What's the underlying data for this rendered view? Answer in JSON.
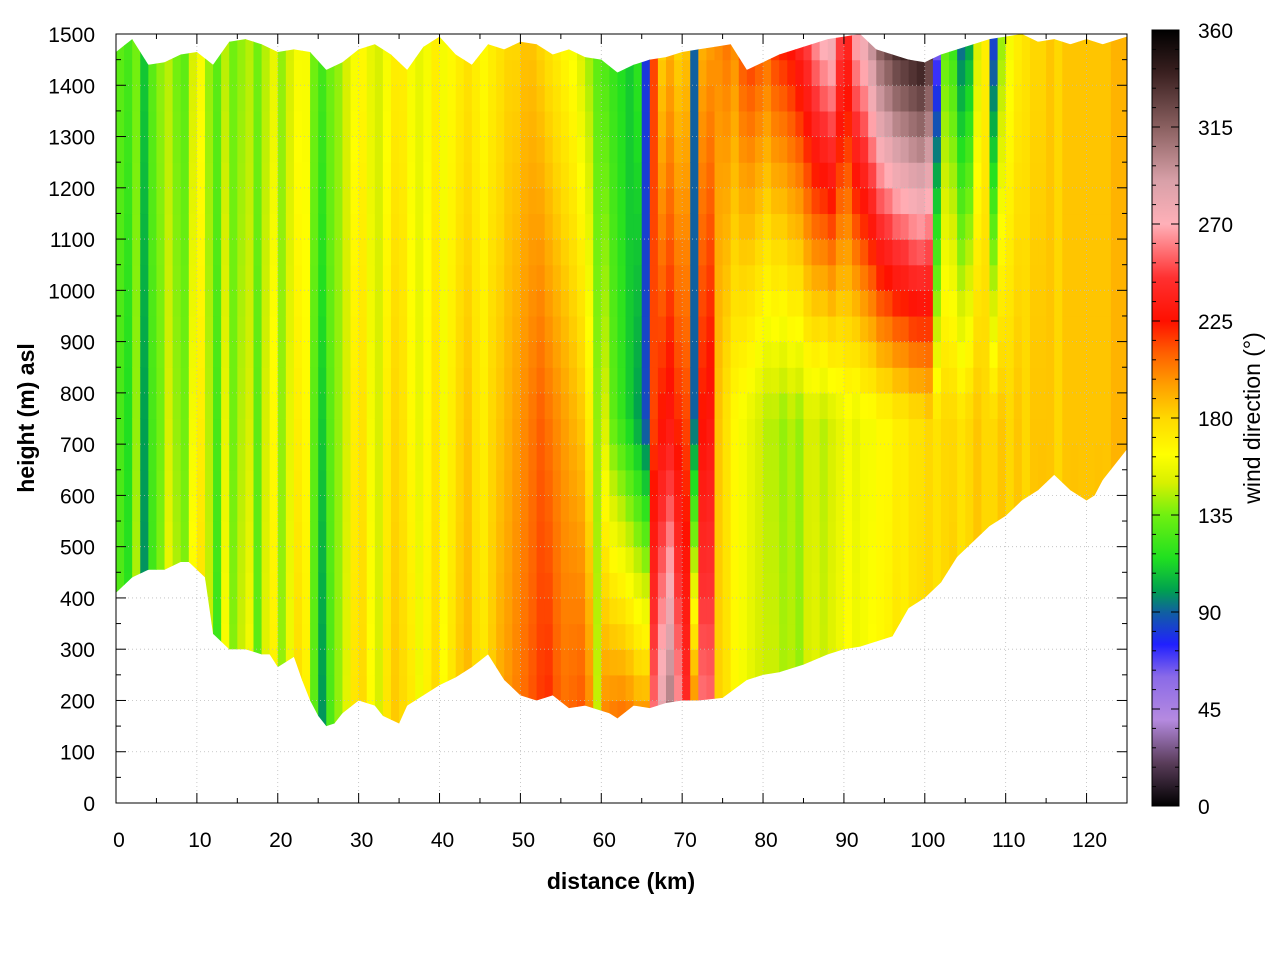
{
  "chart_data": {
    "type": "heatmap",
    "xlabel": "distance (km)",
    "ylabel": "height (m) asl",
    "colorbar_label": "wind direction (°)",
    "xlim": [
      0,
      125
    ],
    "ylim": [
      0,
      1500
    ],
    "clim": [
      0,
      360
    ],
    "x_ticks": [
      "0",
      "10",
      "20",
      "30",
      "40",
      "50",
      "60",
      "70",
      "80",
      "90",
      "100",
      "110",
      "120"
    ],
    "y_ticks": [
      "0",
      "100",
      "200",
      "300",
      "400",
      "500",
      "600",
      "700",
      "800",
      "900",
      "1000",
      "1100",
      "1200",
      "1300",
      "1400",
      "1500"
    ],
    "colorbar_ticks": [
      "0",
      "45",
      "90",
      "135",
      "180",
      "225",
      "270",
      "315",
      "360"
    ],
    "grid": true,
    "colormap": [
      [
        0,
        "#000000"
      ],
      [
        20,
        "#5a3d5a"
      ],
      [
        40,
        "#b58ae0"
      ],
      [
        60,
        "#8a6ae8"
      ],
      [
        75,
        "#2020ff"
      ],
      [
        90,
        "#1060a0"
      ],
      [
        100,
        "#00a050"
      ],
      [
        115,
        "#20e020"
      ],
      [
        135,
        "#70f010"
      ],
      [
        150,
        "#d8f000"
      ],
      [
        163,
        "#ffff00"
      ],
      [
        180,
        "#ffd800"
      ],
      [
        195,
        "#ffa000"
      ],
      [
        210,
        "#ff6000"
      ],
      [
        225,
        "#ff1000"
      ],
      [
        245,
        "#ff3030"
      ],
      [
        270,
        "#ffb0b8"
      ],
      [
        290,
        "#d8a0a8"
      ],
      [
        315,
        "#8a6060"
      ],
      [
        340,
        "#3a2020"
      ],
      [
        360,
        "#000000"
      ]
    ],
    "terrain_bottom": {
      "x": [
        0,
        2,
        4,
        6,
        8,
        9,
        11,
        12,
        14,
        16,
        18,
        19,
        20,
        22,
        23,
        24,
        25,
        26,
        27,
        28,
        30,
        32,
        33,
        35,
        36,
        38,
        40,
        42,
        44,
        46,
        48,
        50,
        52,
        54,
        56,
        58,
        60,
        61,
        62,
        64,
        66,
        68,
        70,
        72,
        75,
        78,
        80,
        82,
        85,
        88,
        90,
        92,
        94,
        96,
        98,
        100,
        102,
        104,
        106,
        108,
        110,
        112,
        114,
        116,
        118,
        120,
        121,
        122,
        124,
        125
      ],
      "y": [
        410,
        440,
        455,
        455,
        470,
        470,
        440,
        330,
        300,
        300,
        290,
        290,
        265,
        285,
        240,
        200,
        170,
        150,
        155,
        175,
        200,
        190,
        170,
        155,
        190,
        210,
        230,
        245,
        265,
        290,
        240,
        210,
        200,
        210,
        185,
        190,
        180,
        175,
        165,
        190,
        185,
        195,
        200,
        200,
        205,
        240,
        250,
        255,
        270,
        290,
        300,
        305,
        315,
        325,
        380,
        400,
        430,
        480,
        510,
        540,
        560,
        590,
        610,
        640,
        610,
        590,
        600,
        630,
        670,
        690
      ]
    },
    "terrain_top": {
      "x": [
        0,
        2,
        4,
        6,
        8,
        10,
        12,
        14,
        16,
        18,
        20,
        22,
        24,
        26,
        28,
        30,
        32,
        34,
        36,
        38,
        40,
        42,
        44,
        46,
        48,
        50,
        52,
        54,
        56,
        58,
        60,
        62,
        64,
        66,
        68,
        70,
        72,
        74,
        76,
        78,
        80,
        82,
        84,
        86,
        88,
        90,
        92,
        94,
        96,
        98,
        100,
        102,
        104,
        106,
        108,
        110,
        112,
        114,
        116,
        118,
        120,
        122,
        124,
        125
      ],
      "y": [
        1465,
        1490,
        1440,
        1445,
        1460,
        1465,
        1440,
        1485,
        1490,
        1480,
        1465,
        1470,
        1465,
        1430,
        1445,
        1470,
        1480,
        1460,
        1430,
        1475,
        1495,
        1460,
        1440,
        1480,
        1470,
        1485,
        1480,
        1460,
        1470,
        1455,
        1450,
        1425,
        1440,
        1450,
        1455,
        1465,
        1470,
        1475,
        1480,
        1430,
        1445,
        1460,
        1470,
        1480,
        1490,
        1495,
        1500,
        1470,
        1460,
        1450,
        1445,
        1460,
        1470,
        1480,
        1490,
        1495,
        1500,
        1485,
        1490,
        1480,
        1490,
        1480,
        1490,
        1495
      ]
    },
    "direction_columns": {
      "x": [
        0,
        1,
        2,
        3,
        4,
        5,
        6,
        7,
        8,
        9,
        10,
        11,
        12,
        13,
        14,
        15,
        16,
        17,
        18,
        19,
        20,
        21,
        22,
        23,
        24,
        25,
        26,
        27,
        28,
        29,
        30,
        31,
        32,
        33,
        34,
        35,
        36,
        37,
        38,
        39,
        40,
        41,
        42,
        43,
        44,
        45,
        46,
        47,
        48,
        49,
        50,
        51,
        52,
        53,
        54,
        55,
        56,
        57,
        58,
        59,
        60,
        61,
        62,
        63,
        64,
        65,
        66,
        67,
        68,
        69,
        70,
        71,
        72,
        73,
        74,
        75,
        76,
        77,
        78,
        79,
        80,
        81,
        82,
        83,
        84,
        85,
        86,
        87,
        88,
        89,
        90,
        91,
        92,
        93,
        94,
        95,
        96,
        97,
        98,
        99,
        100,
        101,
        102,
        103,
        104,
        105,
        106,
        107,
        108,
        109,
        110,
        111,
        112,
        113,
        114,
        115,
        116,
        117,
        118,
        119,
        120,
        121,
        122,
        123,
        124
      ],
      "direction_low": [
        130,
        120,
        150,
        95,
        120,
        140,
        165,
        150,
        140,
        170,
        180,
        150,
        120,
        165,
        140,
        150,
        165,
        130,
        155,
        170,
        140,
        160,
        180,
        170,
        130,
        95,
        125,
        140,
        155,
        175,
        180,
        165,
        150,
        175,
        185,
        180,
        175,
        160,
        170,
        180,
        165,
        175,
        185,
        190,
        180,
        175,
        185,
        195,
        200,
        205,
        210,
        215,
        220,
        225,
        215,
        210,
        215,
        220,
        210,
        150,
        215,
        225,
        230,
        230,
        225,
        230,
        270,
        300,
        330,
        280,
        250,
        240,
        270,
        265,
        180,
        175,
        165,
        160,
        155,
        150,
        150,
        150,
        145,
        145,
        140,
        150,
        155,
        150,
        155,
        160,
        165,
        160,
        160,
        165,
        165,
        170,
        175,
        170,
        175,
        180,
        180,
        175,
        180,
        185,
        175,
        180,
        185,
        180,
        180,
        185,
        180,
        185,
        180,
        185,
        190,
        185,
        180,
        185,
        190,
        185,
        185,
        190,
        185,
        190,
        190
      ],
      "direction_mid": [
        125,
        115,
        140,
        100,
        125,
        135,
        150,
        140,
        135,
        160,
        170,
        145,
        125,
        155,
        135,
        145,
        150,
        130,
        150,
        165,
        140,
        155,
        170,
        165,
        130,
        110,
        130,
        140,
        150,
        170,
        175,
        160,
        150,
        170,
        180,
        175,
        165,
        155,
        165,
        175,
        160,
        170,
        180,
        185,
        175,
        170,
        180,
        185,
        190,
        195,
        200,
        205,
        210,
        205,
        200,
        195,
        190,
        185,
        170,
        140,
        150,
        130,
        120,
        110,
        100,
        85,
        215,
        225,
        230,
        220,
        215,
        90,
        225,
        230,
        185,
        175,
        165,
        160,
        155,
        150,
        145,
        145,
        140,
        145,
        140,
        150,
        150,
        145,
        150,
        155,
        160,
        155,
        160,
        160,
        165,
        165,
        170,
        170,
        175,
        175,
        180,
        175,
        180,
        180,
        175,
        180,
        185,
        180,
        180,
        185,
        180,
        185,
        180,
        185,
        185,
        185,
        180,
        185,
        185,
        185,
        185,
        185,
        185,
        190,
        190
      ],
      "direction_high": [
        130,
        125,
        135,
        110,
        130,
        140,
        145,
        135,
        130,
        150,
        160,
        140,
        130,
        145,
        135,
        140,
        145,
        135,
        145,
        155,
        140,
        150,
        160,
        160,
        135,
        125,
        135,
        140,
        150,
        160,
        165,
        155,
        150,
        160,
        170,
        170,
        160,
        155,
        160,
        170,
        160,
        165,
        170,
        175,
        170,
        165,
        170,
        175,
        180,
        180,
        185,
        185,
        180,
        175,
        170,
        165,
        160,
        150,
        140,
        130,
        125,
        120,
        115,
        110,
        120,
        80,
        215,
        180,
        190,
        180,
        185,
        90,
        190,
        195,
        200,
        205,
        200,
        215,
        220,
        215,
        210,
        220,
        225,
        230,
        240,
        250,
        265,
        275,
        280,
        250,
        240,
        270,
        280,
        300,
        320,
        330,
        340,
        345,
        350,
        355,
        340,
        60,
        130,
        120,
        90,
        100,
        150,
        170,
        80,
        140,
        160,
        170,
        175,
        180,
        180,
        185,
        180,
        185,
        185,
        185,
        185,
        185,
        185,
        190,
        190
      ]
    }
  }
}
